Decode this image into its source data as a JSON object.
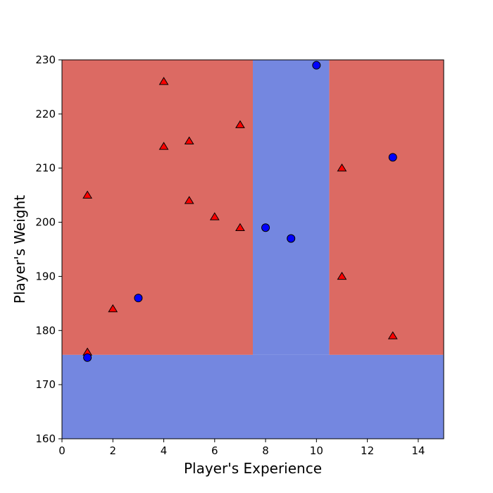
{
  "chart_data": {
    "type": "scatter",
    "title": "",
    "xlabel": "Player's Experience",
    "ylabel": "Player's Weight",
    "xlim": [
      0,
      15
    ],
    "ylim": [
      160,
      230
    ],
    "xticks": [
      0,
      2,
      4,
      6,
      8,
      10,
      12,
      14
    ],
    "yticks": [
      160,
      170,
      180,
      190,
      200,
      210,
      220,
      230
    ],
    "grid": false,
    "decision_regions": {
      "colors": {
        "class_1": "#dc6a63",
        "class_0": "#7487e0"
      },
      "regions": [
        {
          "class": "class_1",
          "x": [
            0,
            7.5
          ],
          "y": [
            175.5,
            230
          ]
        },
        {
          "class": "class_1",
          "x": [
            10.5,
            15
          ],
          "y": [
            175.5,
            230
          ]
        },
        {
          "class": "class_0",
          "x": [
            0,
            15
          ],
          "y": [
            160,
            175.5
          ]
        },
        {
          "class": "class_0",
          "x": [
            7.5,
            10.5
          ],
          "y": [
            175.5,
            230
          ]
        }
      ]
    },
    "series": [
      {
        "marker": "triangle",
        "color": "#ff0000",
        "points": [
          {
            "x": 1,
            "y": 176
          },
          {
            "x": 1,
            "y": 205
          },
          {
            "x": 2,
            "y": 184
          },
          {
            "x": 4,
            "y": 226
          },
          {
            "x": 4,
            "y": 214
          },
          {
            "x": 5,
            "y": 215
          },
          {
            "x": 5,
            "y": 204
          },
          {
            "x": 6,
            "y": 201
          },
          {
            "x": 7,
            "y": 218
          },
          {
            "x": 7,
            "y": 199
          },
          {
            "x": 11,
            "y": 210
          },
          {
            "x": 11,
            "y": 190
          },
          {
            "x": 13,
            "y": 179
          }
        ]
      },
      {
        "marker": "circle",
        "color": "#0000ff",
        "points": [
          {
            "x": 1,
            "y": 175
          },
          {
            "x": 3,
            "y": 186
          },
          {
            "x": 8,
            "y": 199
          },
          {
            "x": 9,
            "y": 197
          },
          {
            "x": 10,
            "y": 229
          },
          {
            "x": 13,
            "y": 212
          }
        ]
      }
    ]
  }
}
